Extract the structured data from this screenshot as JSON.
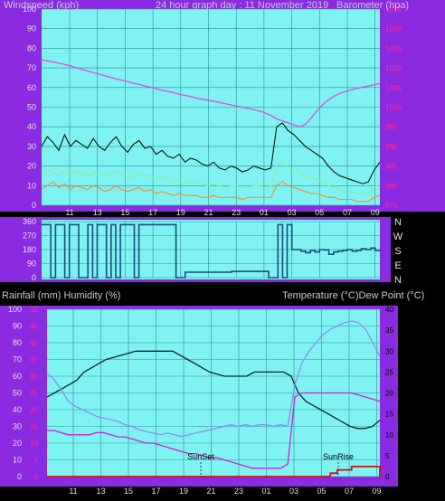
{
  "colors": {
    "frame": "#8a2be2",
    "plot_bg": "#7ff2f2",
    "grid": "#2f8f8f",
    "gust": "#0a1a0a",
    "avg_wind": "#8ef08e",
    "wind_low": "#ff8c1a",
    "barometer": "#d94fd9",
    "direction": "#1a4f7a",
    "temperature": "#102a2a",
    "dewpoint": "#d020d0",
    "humidity": "#8890f0",
    "rainfall": "#d01010"
  },
  "chart_data": [
    {
      "type": "line",
      "title": "24 hour graph day : 11 November 2019",
      "ylabel_left": "Windspeed (kph)",
      "ylabel_right": "Barometer (hpa)",
      "ylim_left": [
        0,
        100
      ],
      "ylim_right": [
        975,
        1025
      ],
      "x_ticks": [
        "11",
        "13",
        "15",
        "17",
        "19",
        "21",
        "23",
        "01",
        "03",
        "05",
        "07",
        "09"
      ],
      "y_ticks_left": [
        "0",
        "10",
        "20",
        "30",
        "40",
        "50",
        "60",
        "70",
        "80",
        "90",
        "100"
      ],
      "y_ticks_right": [
        "975",
        "980",
        "985",
        "990",
        "995",
        "1000",
        "1005",
        "1010",
        "1015",
        "1020",
        "1025"
      ],
      "grid": true,
      "series": [
        {
          "key": "gust",
          "values": [
            30,
            35,
            32,
            28,
            36,
            30,
            33,
            31,
            29,
            34,
            30,
            28,
            32,
            35,
            30,
            27,
            31,
            33,
            29,
            30,
            26,
            28,
            25,
            24,
            26,
            22,
            24,
            23,
            21,
            20,
            22,
            19,
            18,
            20,
            19,
            17,
            18,
            20,
            19,
            18,
            19,
            40,
            42,
            38,
            36,
            33,
            30,
            28,
            26,
            24,
            20,
            17,
            15,
            14,
            13,
            12,
            11,
            12,
            18,
            22
          ]
        },
        {
          "key": "avg_wind",
          "values": [
            16,
            18,
            17,
            15,
            18,
            16,
            17,
            16,
            15,
            17,
            16,
            15,
            16,
            17,
            16,
            14,
            15,
            16,
            15,
            15,
            13,
            14,
            13,
            12,
            13,
            11,
            12,
            12,
            11,
            10,
            11,
            10,
            9,
            10,
            10,
            9,
            9,
            10,
            10,
            9,
            10,
            20,
            22,
            19,
            18,
            17,
            15,
            14,
            13,
            12,
            10,
            9,
            8,
            7,
            7,
            6,
            6,
            6,
            9,
            11
          ]
        },
        {
          "key": "wind_low",
          "values": [
            8,
            10,
            12,
            9,
            11,
            8,
            10,
            9,
            8,
            10,
            9,
            7,
            8,
            10,
            8,
            7,
            8,
            9,
            7,
            8,
            6,
            7,
            6,
            5,
            6,
            5,
            5,
            5,
            4,
            4,
            5,
            4,
            4,
            4,
            4,
            3,
            4,
            4,
            4,
            4,
            4,
            10,
            12,
            10,
            9,
            8,
            7,
            6,
            6,
            5,
            4,
            4,
            3,
            3,
            3,
            2,
            2,
            2,
            4,
            5
          ]
        },
        {
          "key": "barometer",
          "values": [
            1012.0,
            1011.8,
            1011.5,
            1011.2,
            1010.9,
            1010.5,
            1010.1,
            1009.6,
            1009.2,
            1008.8,
            1008.4,
            1008.0,
            1007.6,
            1007.2,
            1006.9,
            1006.5,
            1006.1,
            1005.8,
            1005.4,
            1005.1,
            1004.7,
            1004.3,
            1004.0,
            1003.7,
            1003.3,
            1003.0,
            1002.7,
            1002.3,
            1002.0,
            1001.8,
            1001.5,
            1001.2,
            1000.9,
            1000.6,
            1000.3,
            1000.0,
            999.7,
            999.4,
            999.0,
            998.5,
            997.9,
            997.0,
            996.5,
            996.0,
            995.5,
            995.0,
            995.6,
            997.2,
            999.0,
            1000.6,
            1001.8,
            1002.8,
            1003.5,
            1004.0,
            1004.4,
            1004.8,
            1005.1,
            1005.4,
            1005.7,
            1006.0
          ]
        }
      ]
    },
    {
      "type": "line",
      "title": "",
      "ylabel": "",
      "ylim": [
        0,
        360
      ],
      "y_ticks": [
        "0",
        "90",
        "180",
        "270",
        "360"
      ],
      "direction_labels": [
        "N",
        "W",
        "S",
        "E",
        "N"
      ],
      "series": [
        {
          "key": "direction",
          "values": [
            340,
            340,
            0,
            340,
            340,
            0,
            340,
            340,
            0,
            0,
            340,
            0,
            340,
            340,
            0,
            340,
            0,
            340,
            340,
            340,
            0,
            340,
            340,
            340,
            340,
            340,
            340,
            340,
            340,
            0,
            0,
            35,
            35,
            35,
            35,
            35,
            35,
            35,
            35,
            35,
            35,
            40,
            40,
            40,
            40,
            40,
            40,
            40,
            40,
            0,
            0,
            340,
            0,
            340,
            180,
            180,
            170,
            160,
            175,
            165,
            180,
            178,
            150,
            165,
            170,
            175,
            180,
            170,
            175,
            185,
            180,
            190,
            175,
            180
          ]
        }
      ]
    },
    {
      "type": "line",
      "title": "",
      "ylabel_left": "Rainfall (mm)  Humidity (%)",
      "ylabel_right": "Temperature (°C)Dew Point (°C)",
      "ylim_left": [
        0,
        100
      ],
      "ylim_rain": [
        0,
        50
      ],
      "ylim_right": [
        0,
        40
      ],
      "x_ticks": [
        "11",
        "13",
        "15",
        "17",
        "19",
        "21",
        "23",
        "01",
        "03",
        "05",
        "07",
        "09"
      ],
      "y_ticks_left": [
        "0",
        "10",
        "20",
        "30",
        "40",
        "50",
        "60",
        "70",
        "80",
        "90",
        "100"
      ],
      "y_ticks_rain": [
        "0",
        "5",
        "10",
        "15",
        "20",
        "25",
        "30",
        "35",
        "40",
        "45",
        "50"
      ],
      "y_ticks_right": [
        "0",
        "5",
        "10",
        "15",
        "20",
        "25",
        "30",
        "35",
        "40"
      ],
      "annotations": [
        "SunSet",
        "SunRise"
      ],
      "grid": true,
      "series": [
        {
          "key": "temperature",
          "values": [
            19,
            20,
            21,
            22,
            23,
            25,
            26,
            27,
            28,
            28.5,
            29,
            29.5,
            30,
            30,
            30,
            30,
            30,
            30,
            29,
            28,
            27,
            26,
            25,
            24.5,
            24,
            24,
            24,
            24,
            25,
            25,
            25,
            25,
            25,
            24,
            20,
            18,
            17,
            16,
            15,
            14,
            13,
            12,
            11.5,
            11.5,
            12,
            13.5
          ]
        },
        {
          "key": "humidity",
          "values": [
            62,
            58,
            52,
            45,
            42,
            40,
            38,
            36,
            35,
            34,
            33,
            31,
            30,
            28,
            27,
            26,
            25,
            26,
            25,
            24,
            25,
            26,
            27,
            28,
            29,
            30,
            31,
            30,
            31,
            30,
            31,
            31,
            30,
            31,
            30,
            55,
            68,
            75,
            80,
            85,
            88,
            90,
            92,
            93,
            92,
            88,
            80,
            72
          ]
        },
        {
          "key": "dewpoint",
          "values": [
            11,
            11,
            10.5,
            10,
            10,
            10,
            10,
            10.5,
            10.5,
            10,
            9.5,
            9.5,
            9,
            8.5,
            8,
            8,
            7.5,
            7,
            6.5,
            6,
            5.5,
            5.5,
            5,
            4.5,
            4.5,
            4,
            3.5,
            3,
            2.5,
            2,
            2,
            2,
            2,
            2,
            3,
            19,
            20,
            20,
            20,
            20,
            20,
            20,
            20,
            20,
            19.5,
            19,
            18.5,
            18
          ]
        },
        {
          "key": "rainfall",
          "values": [
            0,
            0,
            0,
            0,
            0,
            0,
            0,
            0,
            0,
            0,
            0,
            0,
            0,
            0,
            0,
            0,
            0,
            0,
            0,
            0,
            0,
            0,
            0,
            0,
            0,
            0,
            0,
            0,
            0,
            0,
            0,
            0,
            0,
            0,
            0,
            0,
            0,
            0,
            0,
            0,
            1,
            2,
            2,
            3,
            3,
            3,
            3,
            0
          ]
        }
      ]
    }
  ]
}
